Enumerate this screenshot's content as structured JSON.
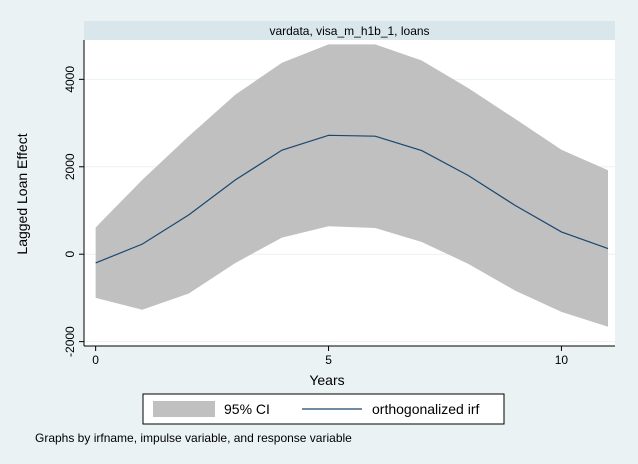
{
  "chart_data": {
    "type": "line",
    "panel_title": "vardata, visa_m_h1b_1, loans",
    "xlabel": "Years",
    "ylabel": "Lagged Loan Effect",
    "xlim": [
      -0.25,
      11.15
    ],
    "ylim": [
      -2100,
      4900
    ],
    "x_ticks": [
      0,
      5,
      10
    ],
    "y_ticks": [
      -2000,
      0,
      2000,
      4000
    ],
    "grid": true,
    "legend_position": "bottom",
    "x": [
      0,
      1,
      2,
      3,
      4,
      5,
      6,
      7,
      8,
      9,
      10,
      11
    ],
    "series": [
      {
        "name": "orthogonalized irf",
        "values": [
          -200,
          230,
          900,
          1700,
          2380,
          2720,
          2700,
          2370,
          1800,
          1120,
          510,
          130
        ],
        "color": "#1a476f"
      }
    ],
    "ci": {
      "name": "95% CI",
      "lower": [
        -1000,
        -1270,
        -900,
        -200,
        380,
        640,
        600,
        280,
        -220,
        -830,
        -1320,
        -1660
      ],
      "upper": [
        610,
        1700,
        2700,
        3650,
        4380,
        4800,
        4800,
        4430,
        3800,
        3100,
        2390,
        1920
      ],
      "color": "#c0c0c0"
    },
    "note": "Graphs by irfname, impulse variable, and response variable"
  }
}
